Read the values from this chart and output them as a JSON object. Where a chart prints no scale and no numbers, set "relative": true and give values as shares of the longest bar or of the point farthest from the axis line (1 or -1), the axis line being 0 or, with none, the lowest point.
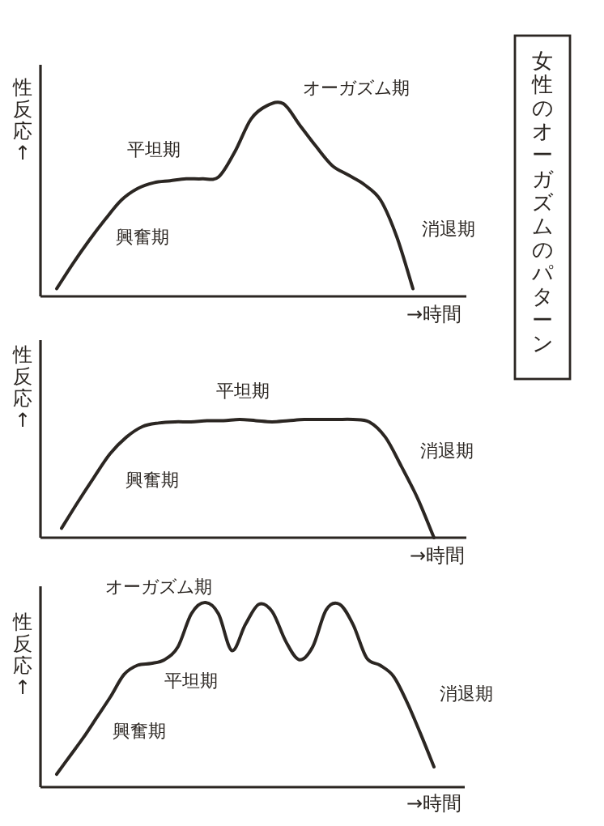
{
  "chart_data": [
    {
      "type": "line",
      "xlabel": "→時間",
      "ylabel": "性反応↑",
      "relative": true,
      "color": "#2b2622",
      "annotations": [
        "興奮期",
        "平坦期",
        "オーガズム期",
        "消退期"
      ],
      "categories": [
        null,
        null,
        null,
        null,
        null,
        null,
        null,
        null,
        null,
        null,
        null,
        null,
        null,
        null,
        null,
        null,
        null,
        null,
        null,
        null,
        null,
        null,
        null
      ],
      "values": [
        0.04,
        0.17,
        0.29,
        0.4,
        0.5,
        0.56,
        0.59,
        0.6,
        0.61,
        0.61,
        0.62,
        0.75,
        0.92,
        0.99,
        1,
        0.89,
        0.78,
        0.68,
        0.63,
        0.58,
        0.5,
        0.31,
        0.04
      ]
    },
    {
      "type": "line",
      "xlabel": "→時間",
      "ylabel": "性反応↑",
      "relative": true,
      "color": "#2b2622",
      "annotations": [
        "興奮期",
        "平坦期",
        "消退期"
      ],
      "categories": [
        null,
        null,
        null,
        null,
        null,
        null,
        null,
        null,
        null,
        null,
        null,
        null,
        null,
        null,
        null,
        null,
        null,
        null,
        null,
        null,
        null,
        null,
        null,
        null
      ],
      "values": [
        0.08,
        0.3,
        0.51,
        0.71,
        0.85,
        0.94,
        0.97,
        0.98,
        0.98,
        0.99,
        0.99,
        1,
        0.99,
        0.98,
        0.99,
        1,
        1,
        1,
        1,
        0.98,
        0.85,
        0.6,
        0.33,
        0
      ]
    },
    {
      "type": "line",
      "xlabel": "→時間",
      "ylabel": "性反応↑",
      "relative": true,
      "color": "#2b2622",
      "annotations": [
        "興奮期",
        "平坦期",
        "オーガズム期",
        "消退期"
      ],
      "categories": [
        null,
        null,
        null,
        null,
        null,
        null,
        null,
        null,
        null,
        null,
        null,
        null,
        null,
        null,
        null,
        null,
        null,
        null,
        null,
        null,
        null,
        null,
        null,
        null,
        null,
        null,
        null,
        null,
        null
      ],
      "values": [
        0.07,
        0.17,
        0.27,
        0.38,
        0.49,
        0.61,
        0.66,
        0.67,
        0.69,
        0.76,
        0.94,
        1,
        0.94,
        0.74,
        0.88,
        0.99,
        0.95,
        0.79,
        0.69,
        0.76,
        0.96,
        0.99,
        0.88,
        0.7,
        0.66,
        0.6,
        0.46,
        0.29,
        0.11
      ]
    },
    {
      "type": "other",
      "title": "女性のオーガズムのパターン"
    }
  ]
}
